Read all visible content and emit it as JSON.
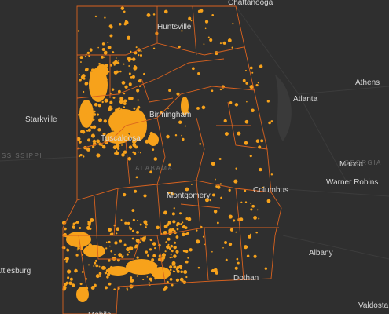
{
  "map": {
    "cities": [
      {
        "label": "Chattanooga"
      },
      {
        "label": "Huntsville"
      },
      {
        "label": "Athens"
      },
      {
        "label": "Atlanta"
      },
      {
        "label": "Starkville"
      },
      {
        "label": "Birmingham"
      },
      {
        "label": "Tuscaloosa"
      },
      {
        "label": "Montgomery"
      },
      {
        "label": "Columbus"
      },
      {
        "label": "Macon"
      },
      {
        "label": "Warner Robins"
      },
      {
        "label": "Albany"
      },
      {
        "label": "Hattiesburg"
      },
      {
        "label": "Dothan"
      },
      {
        "label": "Valdosta"
      },
      {
        "label": "Mobile"
      }
    ],
    "regions": [
      {
        "label": "MISSISSIPPI"
      },
      {
        "label": "ALABAMA"
      },
      {
        "label": "GEORGIA"
      }
    ]
  }
}
